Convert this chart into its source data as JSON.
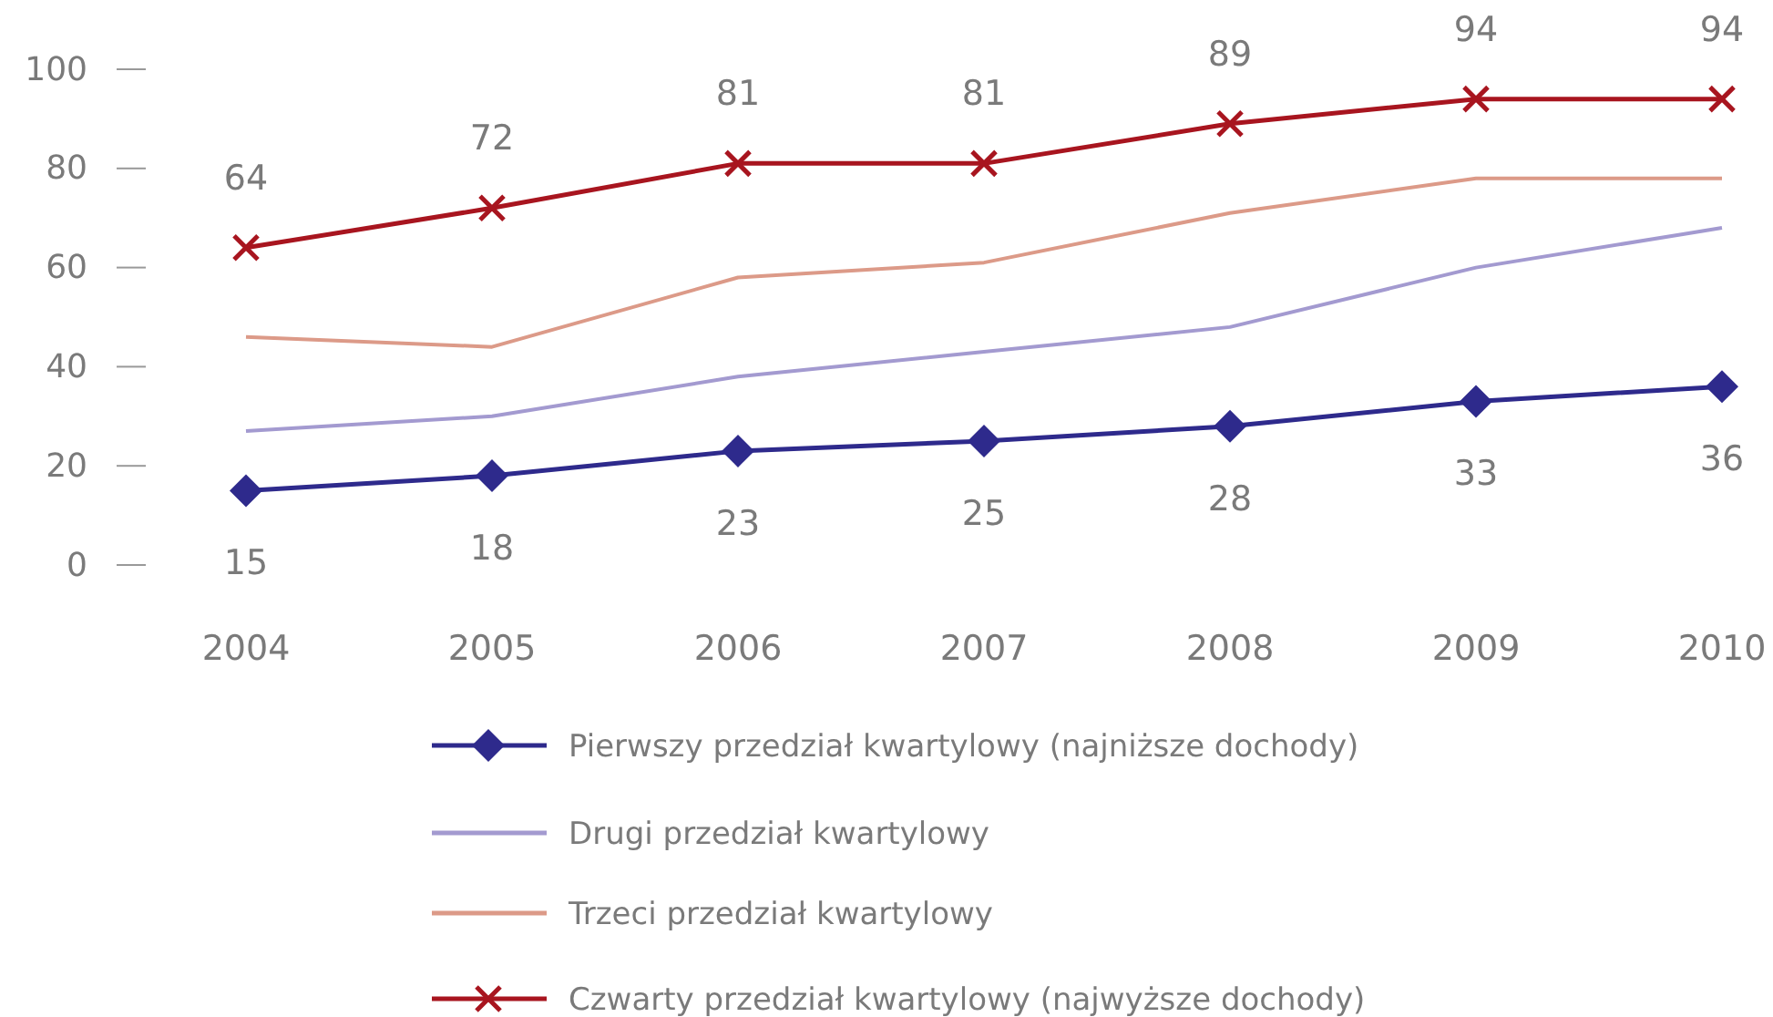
{
  "chart_data": {
    "type": "line",
    "categories": [
      "2004",
      "2005",
      "2006",
      "2007",
      "2008",
      "2009",
      "2010"
    ],
    "ylim": [
      0,
      100
    ],
    "yticks": [
      0,
      20,
      40,
      60,
      80,
      100
    ],
    "grid": false,
    "legend": "bottom",
    "series": [
      {
        "name": "Pierwszy przedział kwartylowy (najniższe dochody)",
        "color": "#2e2a8c",
        "marker": "diamond",
        "values": [
          15,
          18,
          23,
          25,
          28,
          33,
          36
        ],
        "value_labels": [
          "15",
          "18",
          "23",
          "25",
          "28",
          "33",
          "36"
        ]
      },
      {
        "name": "Drugi przedział kwartylowy",
        "color": "#a39ad0",
        "marker": "none",
        "values": [
          27,
          30,
          38,
          43,
          48,
          60,
          68
        ]
      },
      {
        "name": "Trzeci przedział kwartylowy",
        "color": "#dc9a88",
        "marker": "none",
        "values": [
          46,
          44,
          58,
          61,
          71,
          78,
          78
        ]
      },
      {
        "name": "Czwarty przedział kwartylowy (najwyższe dochody)",
        "color": "#a8151f",
        "marker": "cross",
        "values": [
          64,
          72,
          81,
          81,
          89,
          94,
          94
        ],
        "value_labels": [
          "64",
          "72",
          "81",
          "81",
          "89",
          "94",
          "94"
        ]
      }
    ]
  }
}
